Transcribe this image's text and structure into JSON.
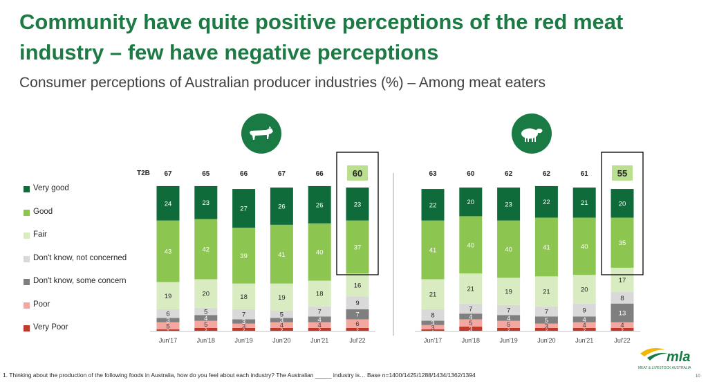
{
  "title": "Community have quite positive perceptions of the red meat industry – few have negative perceptions",
  "subtitle": "Consumer perceptions of Australian producer industries (%) – Among meat eaters",
  "t2b_label": "T2B",
  "icons": {
    "left": "cow-icon",
    "right": "sheep-icon"
  },
  "legend": [
    {
      "label": "Very good",
      "color": "#0f6b3a"
    },
    {
      "label": "Good",
      "color": "#8dc551"
    },
    {
      "label": "Fair",
      "color": "#d9ecc1"
    },
    {
      "label": "Don't know, not concerned",
      "color": "#d9d9d9"
    },
    {
      "label": "Don't know, some concern",
      "color": "#7f7f7f"
    },
    {
      "label": "Poor",
      "color": "#f2a7a0"
    },
    {
      "label": "Very Poor",
      "color": "#c0392b"
    }
  ],
  "footnote": "1. Thinking about the production of the following foods in Australia, how do you feel about each industry? The Australian _____ industry is… Base n=1400/1425/1288/1434/1362/1394",
  "page_number": "10",
  "logo": {
    "text": "mla",
    "subtext": "MEAT & LIVESTOCK AUSTRALIA"
  },
  "chart_data": [
    {
      "type": "bar",
      "stacked": true,
      "icon": "cow-icon",
      "categories": [
        "Jun'17",
        "Jun'18",
        "Jun'19",
        "Jun'20",
        "Jun'21",
        "Jul'22"
      ],
      "t2b": [
        "67",
        "65",
        "66",
        "67",
        "66",
        "60"
      ],
      "highlight_category": "Jul'22",
      "series": [
        {
          "name": "Very Poor",
          "values": [
            1,
            2,
            2,
            2,
            2,
            2
          ]
        },
        {
          "name": "Poor",
          "values": [
            5,
            5,
            3,
            4,
            4,
            6
          ]
        },
        {
          "name": "Don't know, some concern",
          "values": [
            3,
            4,
            3,
            3,
            4,
            7
          ]
        },
        {
          "name": "Don't know, not concerned",
          "values": [
            6,
            5,
            7,
            5,
            7,
            9
          ]
        },
        {
          "name": "Fair",
          "values": [
            19,
            20,
            18,
            19,
            18,
            16
          ]
        },
        {
          "name": "Good",
          "values": [
            43,
            42,
            39,
            41,
            40,
            37
          ]
        },
        {
          "name": "Very good",
          "values": [
            24,
            23,
            27,
            26,
            26,
            23
          ]
        }
      ]
    },
    {
      "type": "bar",
      "stacked": true,
      "icon": "sheep-icon",
      "categories": [
        "Jun'17",
        "Jun'18",
        "Jun'19",
        "Jun'20",
        "Jun'21",
        "Jul'22"
      ],
      "t2b": [
        "63",
        "60",
        "62",
        "62",
        "61",
        "55"
      ],
      "highlight_category": "Jul'22",
      "series": [
        {
          "name": "Very Poor",
          "values": [
            1,
            3,
            2,
            2,
            2,
            2
          ]
        },
        {
          "name": "Poor",
          "values": [
            3,
            5,
            5,
            3,
            4,
            4
          ]
        },
        {
          "name": "Don't know, some concern",
          "values": [
            3,
            4,
            4,
            5,
            4,
            13
          ]
        },
        {
          "name": "Don't know, not concerned",
          "values": [
            8,
            7,
            7,
            7,
            9,
            8
          ]
        },
        {
          "name": "Fair",
          "values": [
            21,
            21,
            19,
            21,
            20,
            17
          ]
        },
        {
          "name": "Good",
          "values": [
            41,
            40,
            40,
            41,
            40,
            35
          ]
        },
        {
          "name": "Very good",
          "values": [
            22,
            20,
            23,
            22,
            21,
            20
          ]
        }
      ]
    }
  ]
}
